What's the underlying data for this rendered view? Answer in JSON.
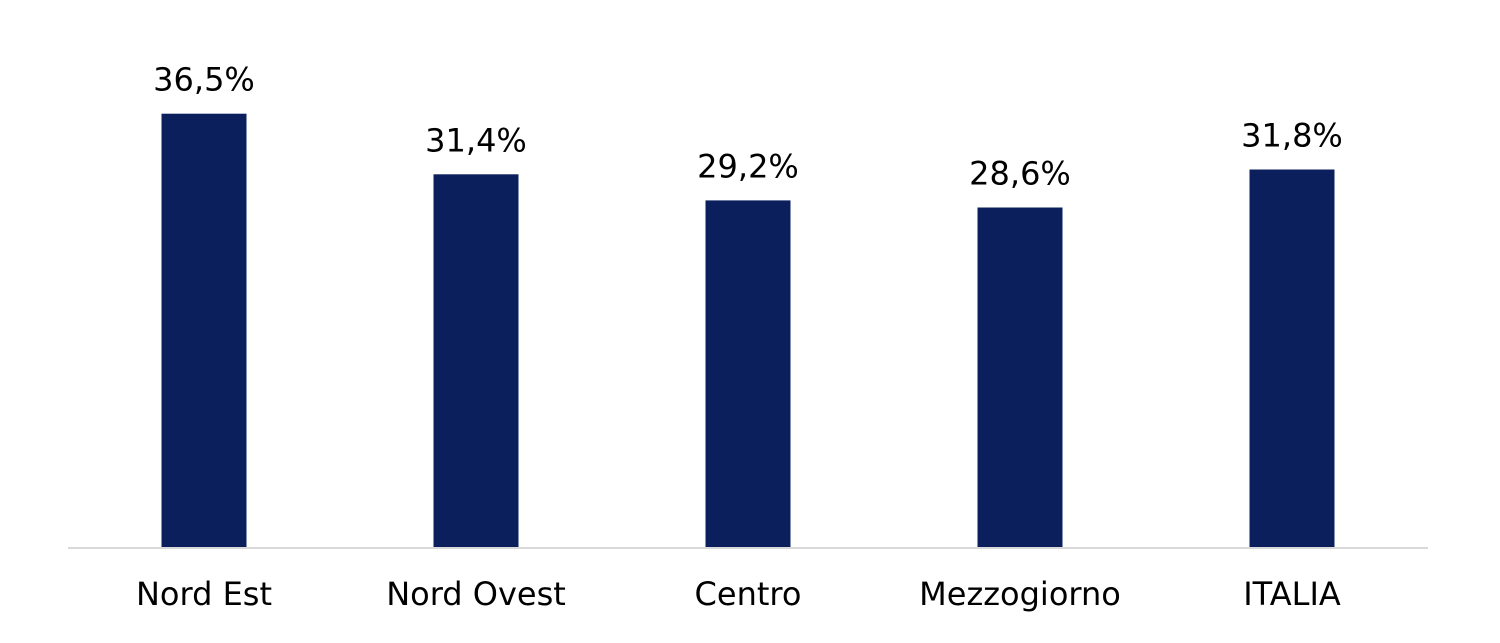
{
  "chart_data": {
    "type": "bar",
    "categories": [
      "Nord Est",
      "Nord Ovest",
      "Centro",
      "Mezzogiorno",
      "ITALIA"
    ],
    "values": [
      36.5,
      31.4,
      29.2,
      28.6,
      31.8
    ],
    "value_labels": [
      "36,5%",
      "31,4%",
      "29,2%",
      "28,6%",
      "31,8%"
    ],
    "unit": "%",
    "title": "",
    "xlabel": "",
    "ylabel": "",
    "ylim": [
      0,
      40
    ],
    "grid": false,
    "legend": "none",
    "bar_color": "#0b1f5c",
    "axis_color": "#d9d9d9"
  }
}
